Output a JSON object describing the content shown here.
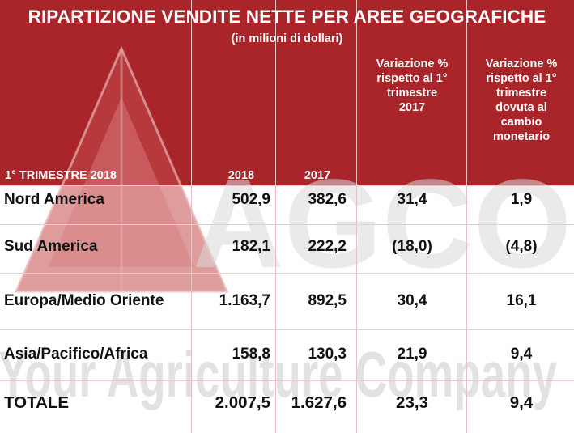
{
  "title": "RIPARTIZIONE VENDITE NETTE PER AREE GEOGRAFICHE",
  "subtitle": "(in milioni di dollari)",
  "watermark": {
    "brand": "AGCO",
    "tagline": "Your Agriculture Company"
  },
  "colors": {
    "header_red": "#aa2529",
    "watermark": "#d9d9d9"
  },
  "table": {
    "headers": {
      "region": "1° TRIMESTRE 2018",
      "y2018": "2018",
      "y2017": "2017",
      "var1_lines": [
        "Variazione %",
        "rispetto al 1°",
        "trimestre",
        "2017"
      ],
      "var2_lines": [
        "Variazione %",
        "rispetto al 1°",
        "trimestre",
        "dovuta al",
        "cambio",
        "monetario"
      ]
    },
    "rows": [
      {
        "region": "Nord America",
        "v2018": "502,9",
        "v2017": "382,6",
        "var1": "31,4",
        "var2": "1,9"
      },
      {
        "region": "Sud America",
        "v2018": "182,1",
        "v2017": "222,2",
        "var1": "(18,0)",
        "var2": "(4,8)"
      },
      {
        "region": "Europa/Medio Oriente",
        "v2018": "1.163,7",
        "v2017": "892,5",
        "var1": "30,4",
        "var2": "16,1"
      },
      {
        "region": "Asia/Pacifico/Africa",
        "v2018": "158,8",
        "v2017": "130,3",
        "var1": "21,9",
        "var2": "9,4"
      }
    ],
    "total": {
      "region": "TOTALE",
      "v2018": "2.007,5",
      "v2017": "1.627,6",
      "var1": "23,3",
      "var2": "9,4"
    }
  }
}
